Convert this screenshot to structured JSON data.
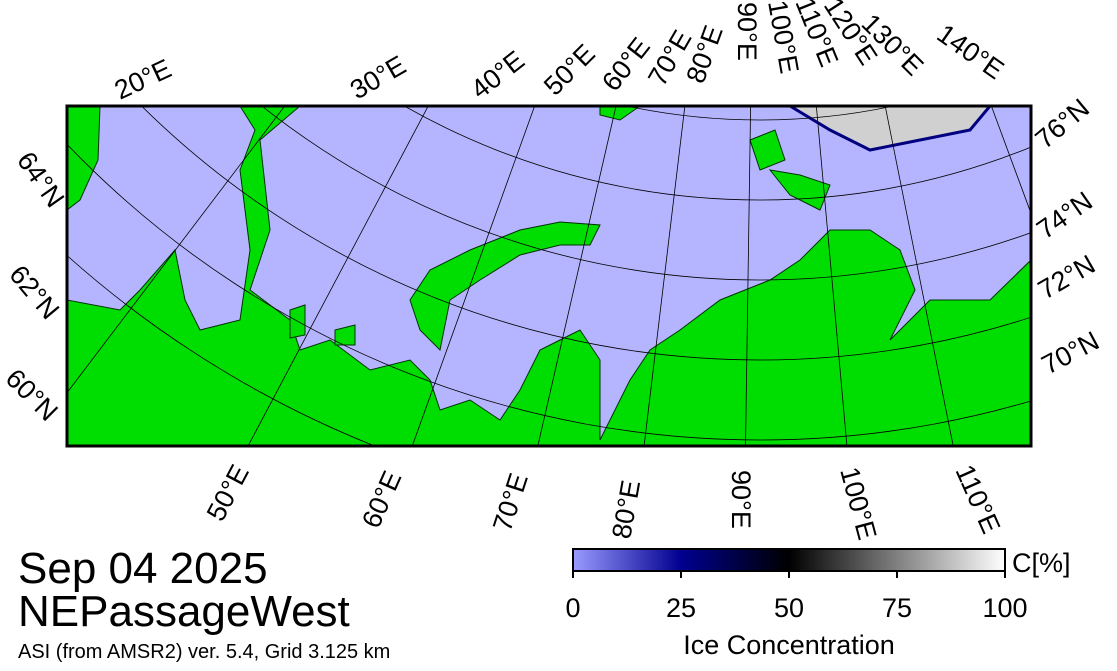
{
  "map": {
    "top_labels": [
      "20°E",
      "30°E",
      "40°E",
      "50°E",
      "60°E",
      "70°E",
      "80°E",
      "90°E",
      "100°E",
      "110°E",
      "120°E",
      "130°E",
      "140°E"
    ],
    "bottom_labels": [
      "50°E",
      "60°E",
      "70°E",
      "80°E",
      "90°E",
      "100°E",
      "110°E"
    ],
    "left_labels": [
      "64°N",
      "62°N",
      "60°N"
    ],
    "right_labels": [
      "76°N",
      "74°N",
      "72°N",
      "70°N"
    ]
  },
  "caption": {
    "date": "Sep 04 2025",
    "region": "NEPassageWest",
    "source": "ASI (from AMSR2) ver. 5.4,  Grid 3.125 km"
  },
  "colorbar": {
    "title": "Ice Concentration",
    "unit": "C[%]",
    "range": [
      0,
      100
    ],
    "ticks": [
      0,
      25,
      50,
      75,
      100
    ]
  }
}
